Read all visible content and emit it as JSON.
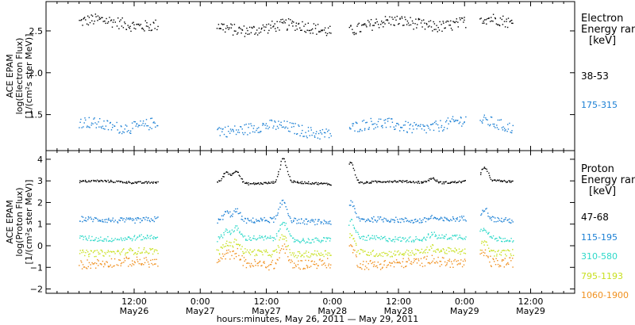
{
  "chart_data": [
    {
      "type": "scatter",
      "ylabel_lines": [
        "ACE EPAM",
        "log(Electron Flux)",
        "[1/(cm²s ster MeV)]"
      ],
      "ylim": [
        1.07,
        2.85
      ],
      "yticks": [
        {
          "value": 1.5,
          "label": "1.5"
        },
        {
          "value": 2.0,
          "label": "2.0"
        },
        {
          "value": 2.5,
          "label": "2.5"
        }
      ],
      "legend_title_lines": [
        "Electron",
        "Energy ranges",
        "[keV]"
      ],
      "series": [
        {
          "name": "38-53",
          "color": "#000000",
          "level": 2.57,
          "spread": 0.14
        },
        {
          "name": "175-315",
          "color": "#1a7fd4",
          "level": 1.36,
          "spread": 0.14
        }
      ]
    },
    {
      "type": "scatter",
      "ylabel_lines": [
        "ACE EPAM",
        "log(Proton Flux)",
        "[1/(cm²s ster MeV)]"
      ],
      "ylim": [
        -2.2,
        4.4
      ],
      "yticks": [
        {
          "value": -2,
          "label": "−2"
        },
        {
          "value": -1,
          "label": "−1"
        },
        {
          "value": 0,
          "label": "0"
        },
        {
          "value": 1,
          "label": "1"
        },
        {
          "value": 2,
          "label": "2"
        },
        {
          "value": 3,
          "label": "3"
        },
        {
          "value": 4,
          "label": "4"
        }
      ],
      "legend_title_lines": [
        "Proton",
        "Energy ranges",
        "[keV]"
      ],
      "series": [
        {
          "name": "47-68",
          "color": "#000000",
          "level": 2.95,
          "spread": 0.1
        },
        {
          "name": "115-195",
          "color": "#1a7fd4",
          "level": 1.2,
          "spread": 0.25
        },
        {
          "name": "310-580",
          "color": "#2ed9c9",
          "level": 0.35,
          "spread": 0.25
        },
        {
          "name": "795-1193",
          "color": "#c8e020",
          "level": -0.3,
          "spread": 0.3
        },
        {
          "name": "1060-1900",
          "color": "#f0901e",
          "level": -0.8,
          "spread": 0.45
        }
      ]
    }
  ],
  "x_axis": {
    "range_hours": [
      -4,
      92
    ],
    "ticks": [
      {
        "hour": 12,
        "time": "12:00",
        "date": "May26"
      },
      {
        "hour": 24,
        "time": "0:00",
        "date": "May27"
      },
      {
        "hour": 36,
        "time": "12:00",
        "date": "May27"
      },
      {
        "hour": 48,
        "time": "0:00",
        "date": "May28"
      },
      {
        "hour": 60,
        "time": "12:00",
        "date": "May28"
      },
      {
        "hour": 72,
        "time": "0:00",
        "date": "May29"
      },
      {
        "hour": 84,
        "time": "12:00",
        "date": "May29"
      }
    ],
    "label": "hours:minutes, May 26, 2011 — May 29, 2011"
  },
  "data_segments_hours": [
    [
      2,
      8.5
    ],
    [
      8.8,
      16.2
    ],
    [
      27,
      47.7
    ],
    [
      51,
      72.2
    ],
    [
      74.8,
      80.8
    ]
  ],
  "proton_features": [
    {
      "hour": 28.7,
      "height": 0.5
    },
    {
      "hour": 30.5,
      "height": 0.6
    },
    {
      "hour": 39,
      "height": 1.1
    },
    {
      "hour": 51.3,
      "height": 1.0
    },
    {
      "hour": 66,
      "height": 0.2
    },
    {
      "hour": 75.5,
      "height": 0.6
    }
  ]
}
